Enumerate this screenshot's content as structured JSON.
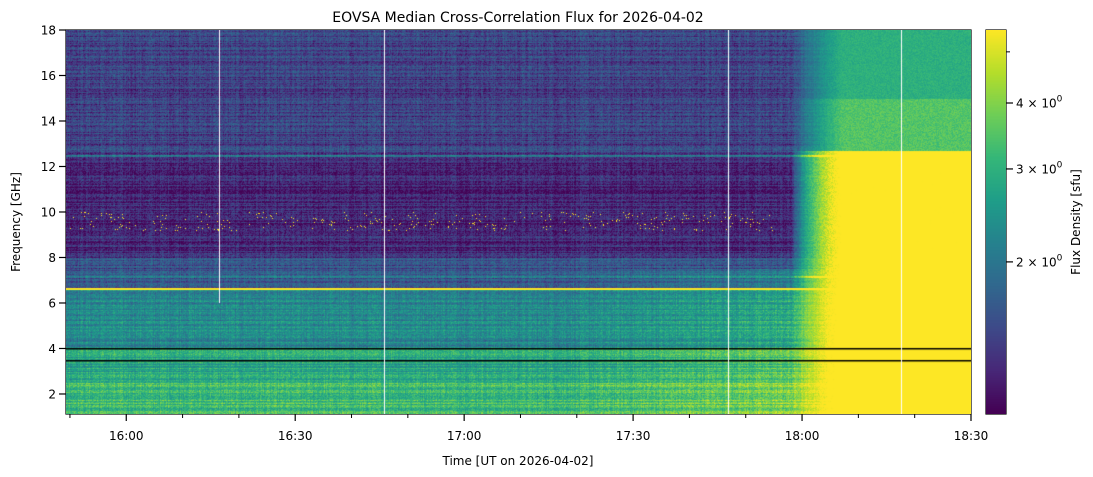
{
  "chart_data": {
    "type": "heatmap",
    "title": "EOVSA Median Cross-Correlation Flux for 2026-04-02",
    "xlabel": "Time [UT on 2026-04-02]",
    "ylabel": "Frequency [GHz]",
    "xlim_minutes_ut": [
      949.3,
      1110
    ],
    "ylim_ghz": [
      1.12,
      18.0
    ],
    "x_ticks": [
      {
        "min": 960,
        "label": "16:00"
      },
      {
        "min": 990,
        "label": "16:30"
      },
      {
        "min": 1020,
        "label": "17:00"
      },
      {
        "min": 1050,
        "label": "17:30"
      },
      {
        "min": 1080,
        "label": "18:00"
      },
      {
        "min": 1110,
        "label": "18:30"
      }
    ],
    "x_minor_ticks_min": [
      950,
      970,
      980,
      1000,
      1010,
      1030,
      1040,
      1060,
      1070,
      1090,
      1100
    ],
    "y_ticks": [
      {
        "v": 2,
        "label": "2"
      },
      {
        "v": 4,
        "label": "4"
      },
      {
        "v": 6,
        "label": "6"
      },
      {
        "v": 8,
        "label": "8"
      },
      {
        "v": 10,
        "label": "10"
      },
      {
        "v": 12,
        "label": "12"
      },
      {
        "v": 14,
        "label": "14"
      },
      {
        "v": 16,
        "label": "16"
      },
      {
        "v": 18,
        "label": "18"
      }
    ],
    "colorbar": {
      "label": "Flux Density [sfu]",
      "scale": "log",
      "colormap": "viridis",
      "range": [
        1.03,
        5.5
      ],
      "ticks": [
        {
          "v": 2,
          "base": "2 × 10",
          "exp": "0"
        },
        {
          "v": 3,
          "base": "3 × 10",
          "exp": "0"
        },
        {
          "v": 4,
          "base": "4 × 10",
          "exp": "0"
        }
      ],
      "minor_ticks": [
        5
      ]
    },
    "frequency_baseline_sfu": [
      {
        "f_min": 12.5,
        "f_max": 18.0,
        "flux": 1.45
      },
      {
        "f_min": 8.0,
        "f_max": 12.5,
        "flux": 1.25
      },
      {
        "f_min": 6.7,
        "f_max": 8.0,
        "flux": 1.6
      },
      {
        "f_min": 4.0,
        "f_max": 6.7,
        "flux": 2.3
      },
      {
        "f_min": 2.6,
        "f_max": 4.0,
        "flux": 2.8
      },
      {
        "f_min": 1.12,
        "f_max": 2.6,
        "flux": 3.3
      }
    ],
    "flare": {
      "onset_min": 1078,
      "peak_start_min": 1087,
      "peak_flux_low_freq": 5.5,
      "peak_flux_high_freq": 3.6,
      "break_freq_ghz": 12.7
    },
    "data_gaps_min": [
      {
        "t": 976.5,
        "f_min": 6.0,
        "f_max": 18.0
      },
      {
        "t": 1005.7,
        "f_min": 1.12,
        "f_max": 18.0
      },
      {
        "t": 1066.9,
        "f_min": 1.12,
        "f_max": 18.0
      },
      {
        "t": 1097.6,
        "f_min": 1.12,
        "f_max": 18.0
      }
    ],
    "dark_lines_ghz": [
      4.0,
      3.5
    ],
    "bright_lines_ghz": [
      6.65,
      7.15,
      12.5
    ],
    "rfi_band_ghz": [
      9.2,
      10.0
    ]
  }
}
